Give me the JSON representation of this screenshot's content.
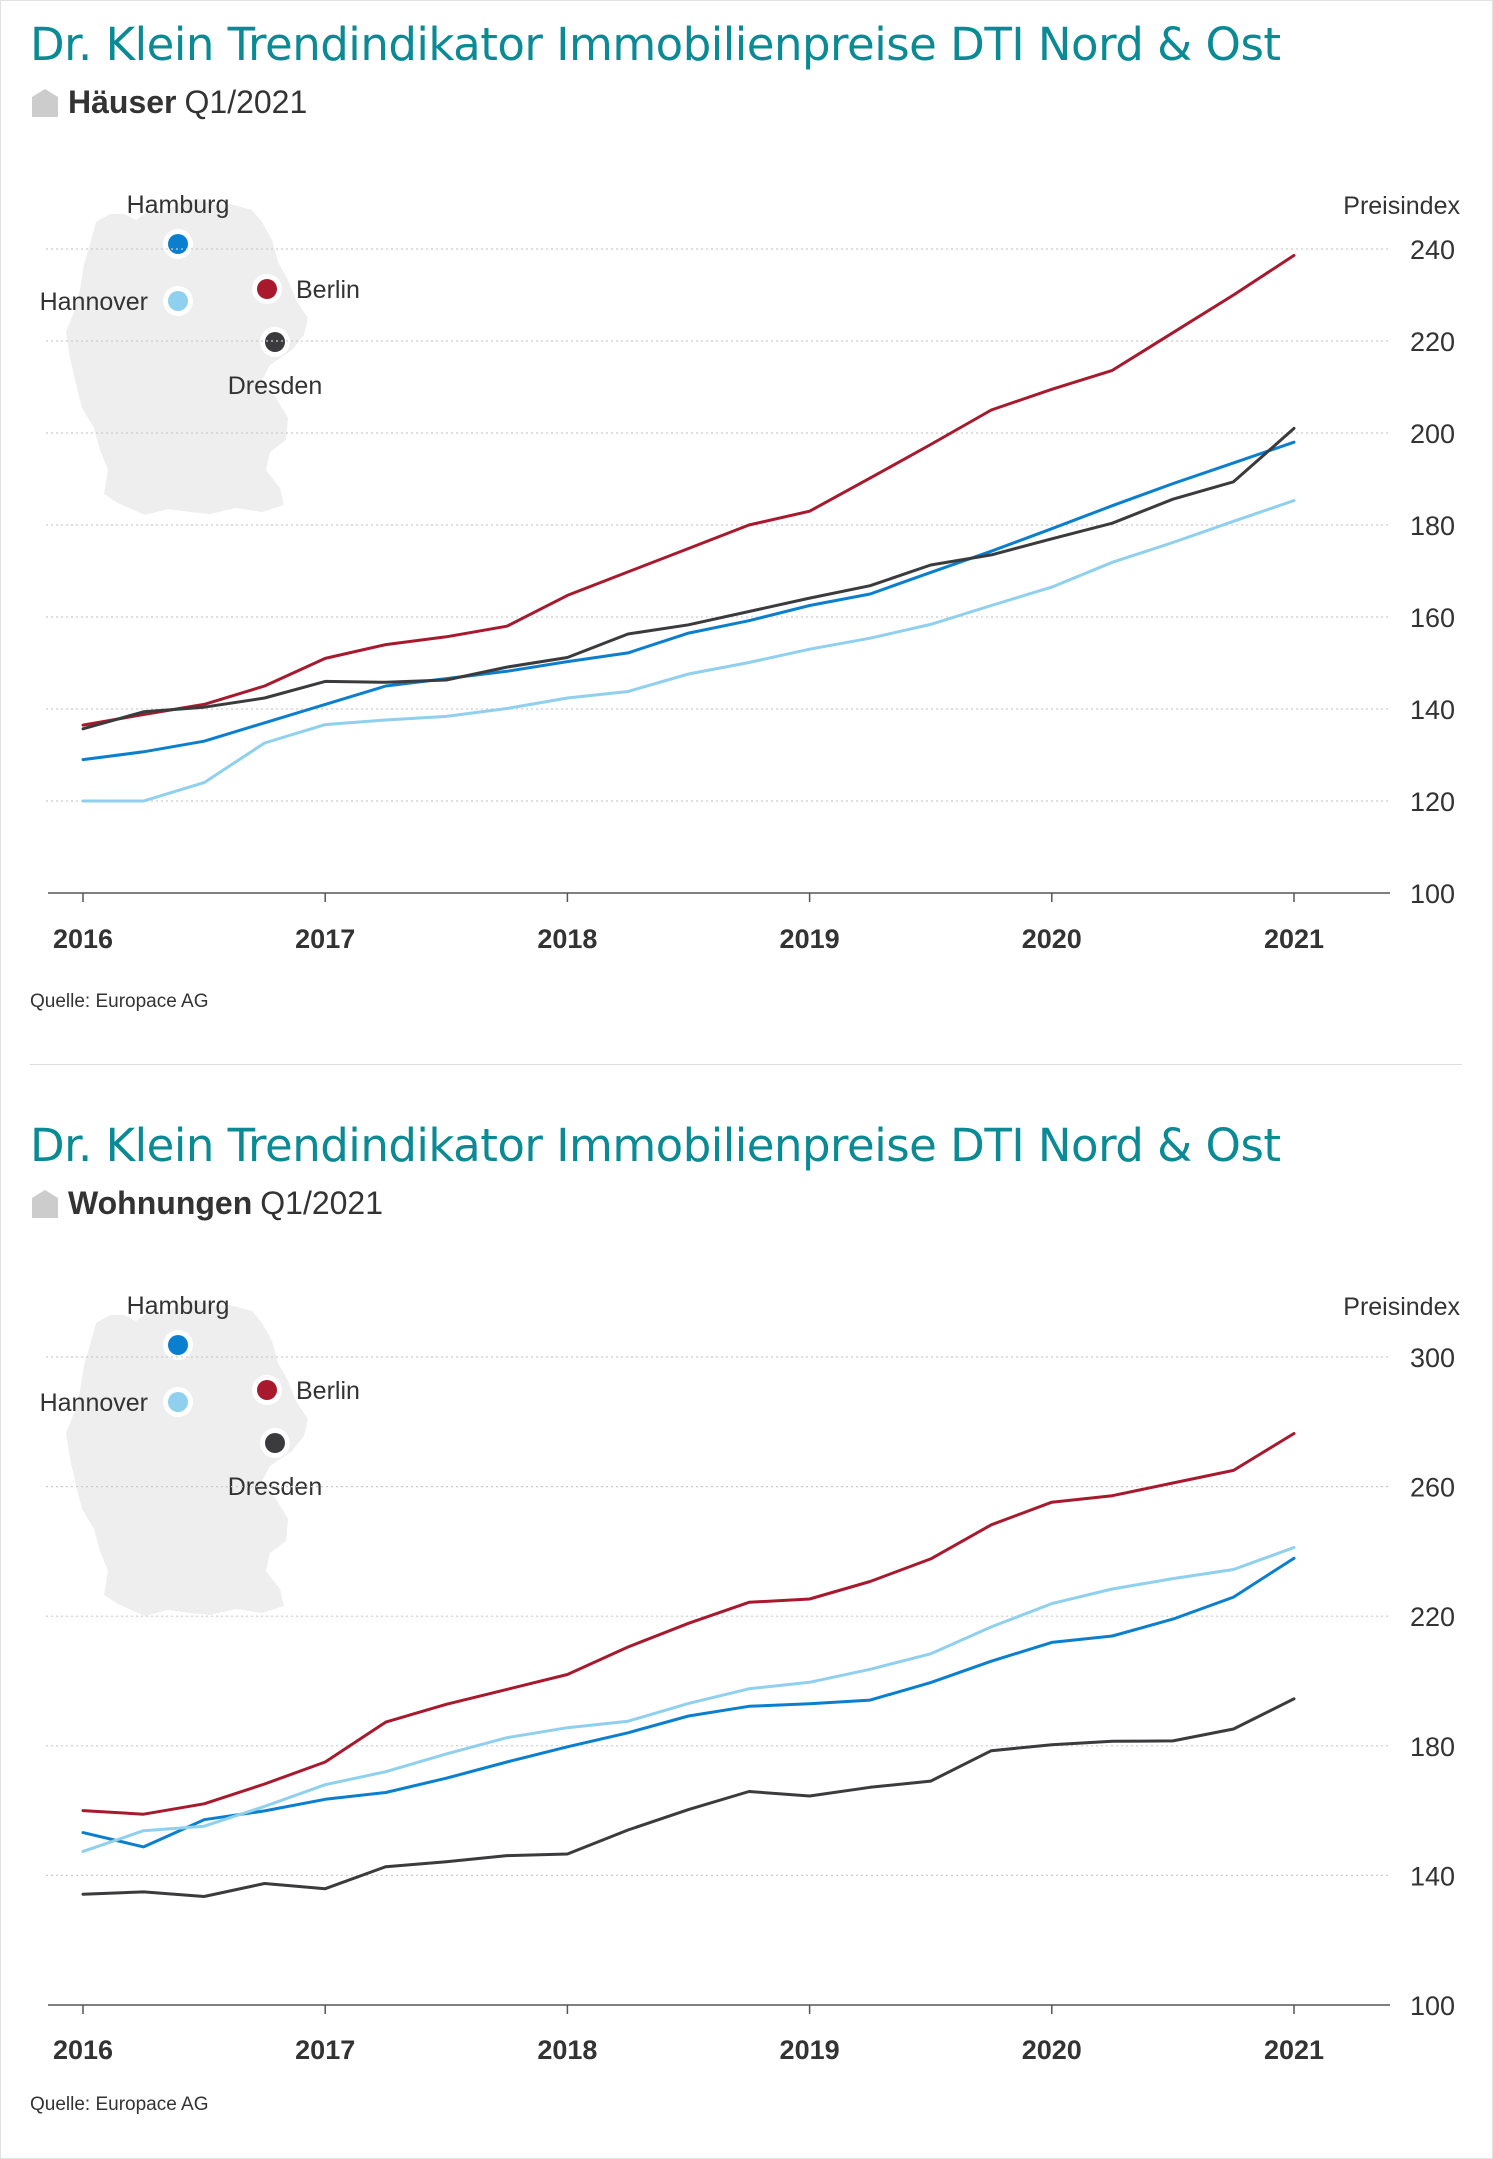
{
  "colors": {
    "title": "#0a8a94",
    "Berlin": "#a8192e",
    "Hamburg": "#0a7fcf",
    "Hannover": "#8fd0ee",
    "Dresden": "#3b3b3d",
    "map": "#eeeeee",
    "grid": "#cccccc",
    "text": "#333333"
  },
  "legend_cities": [
    {
      "name": "Hamburg",
      "icon": "blue-dot-icon"
    },
    {
      "name": "Hannover",
      "icon": "lightblue-dot-icon"
    },
    {
      "name": "Berlin",
      "icon": "red-dot-icon"
    },
    {
      "name": "Dresden",
      "icon": "dark-dot-icon"
    }
  ],
  "chart_data": [
    {
      "type": "line",
      "title": "Dr. Klein Trendindikator Immobilienpreise DTI Nord & Ost",
      "subtitle_strong": "Häuser",
      "subtitle_rest": "Q1/2021",
      "ylabel": "Preisindex",
      "source": "Quelle: Europace AG",
      "x_tick_labels": [
        "2016",
        "2017",
        "2018",
        "2019",
        "2020",
        "2021"
      ],
      "y_ticks": [
        "100",
        "120",
        "140",
        "160",
        "180",
        "200",
        "220",
        "240"
      ],
      "ylim": [
        100,
        240
      ],
      "x": [
        2016.0,
        2016.25,
        2016.5,
        2016.75,
        2017.0,
        2017.25,
        2017.5,
        2017.75,
        2018.0,
        2018.25,
        2018.5,
        2018.75,
        2019.0,
        2019.25,
        2019.5,
        2019.75,
        2020.0,
        2020.25,
        2020.5,
        2020.75,
        2021.0,
        2021.25
      ],
      "series": [
        {
          "name": "Berlin",
          "values": [
            136.5,
            138.8,
            141.0,
            145.0,
            151.0,
            154.0,
            155.7,
            158.0,
            164.7,
            169.8,
            174.9,
            180.0,
            183.0,
            190.2,
            197.5,
            205.0,
            209.5,
            213.6,
            221.8,
            230.0,
            238.6,
            null
          ]
        },
        {
          "name": "Hamburg",
          "values": [
            129.0,
            130.7,
            133.0,
            137.0,
            141.0,
            145.0,
            146.6,
            148.2,
            150.3,
            152.2,
            156.5,
            159.2,
            162.5,
            165.0,
            169.7,
            174.3,
            179.2,
            184.2,
            189.0,
            193.5,
            198.0,
            null
          ]
        },
        {
          "name": "Hannover",
          "values": [
            120.0,
            120.0,
            124.0,
            132.6,
            136.6,
            137.6,
            138.4,
            140.1,
            142.4,
            143.8,
            147.6,
            150.1,
            153.0,
            155.4,
            158.4,
            162.5,
            166.5,
            171.9,
            176.2,
            180.8,
            185.3,
            null
          ]
        },
        {
          "name": "Dresden",
          "values": [
            135.7,
            139.4,
            140.4,
            142.4,
            146.0,
            145.8,
            146.3,
            149.1,
            151.2,
            156.3,
            158.3,
            161.2,
            164.1,
            166.8,
            171.3,
            173.5,
            177.0,
            180.4,
            185.6,
            189.4,
            201.0,
            null
          ]
        }
      ]
    },
    {
      "type": "line",
      "title": "Dr. Klein Trendindikator Immobilienpreise DTI Nord & Ost",
      "subtitle_strong": "Wohnungen",
      "subtitle_rest": "Q1/2021",
      "ylabel": "Preisindex",
      "source": "Quelle: Europace AG",
      "x_tick_labels": [
        "2016",
        "2017",
        "2018",
        "2019",
        "2020",
        "2021"
      ],
      "y_ticks": [
        "100",
        "140",
        "180",
        "220",
        "260",
        "300"
      ],
      "ylim": [
        100,
        300
      ],
      "x": [
        2016.0,
        2016.25,
        2016.5,
        2016.75,
        2017.0,
        2017.25,
        2017.5,
        2017.75,
        2018.0,
        2018.25,
        2018.5,
        2018.75,
        2019.0,
        2019.25,
        2019.5,
        2019.75,
        2020.0,
        2020.25,
        2020.5,
        2020.75,
        2021.0,
        2021.25
      ],
      "series": [
        {
          "name": "Berlin",
          "values": [
            160.0,
            158.9,
            162.1,
            168.2,
            175.0,
            187.3,
            192.8,
            197.4,
            202.0,
            210.5,
            217.8,
            224.3,
            225.3,
            230.7,
            237.7,
            248.2,
            255.2,
            257.2,
            261.1,
            265.0,
            276.4,
            null
          ]
        },
        {
          "name": "Hamburg",
          "values": [
            153.2,
            148.8,
            157.2,
            159.9,
            163.5,
            165.6,
            170.0,
            175.0,
            179.7,
            184.0,
            189.2,
            192.2,
            193.0,
            194.1,
            199.5,
            206.1,
            211.9,
            213.9,
            219.1,
            225.9,
            237.9,
            null
          ]
        },
        {
          "name": "Hannover",
          "values": [
            147.4,
            153.8,
            155.2,
            161.3,
            168.0,
            172.0,
            177.5,
            182.5,
            185.6,
            187.6,
            193.1,
            197.6,
            199.6,
            203.6,
            208.4,
            216.7,
            223.9,
            228.4,
            231.6,
            234.4,
            241.2,
            null
          ]
        },
        {
          "name": "Dresden",
          "values": [
            134.2,
            134.9,
            133.5,
            137.5,
            135.9,
            142.7,
            144.2,
            146.1,
            146.6,
            154.0,
            160.3,
            165.9,
            164.5,
            167.2,
            169.1,
            178.5,
            180.3,
            181.4,
            181.5,
            185.2,
            194.5,
            null
          ]
        }
      ]
    }
  ]
}
